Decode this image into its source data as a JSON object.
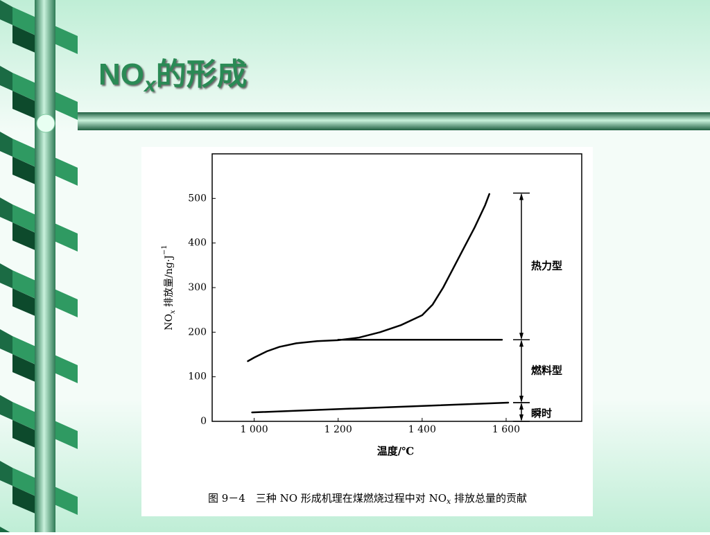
{
  "slide": {
    "title": [
      "NO",
      "x",
      "的形成"
    ]
  },
  "chart_data": {
    "type": "line",
    "ylabel": [
      "NO",
      "x",
      " 排放量/ng·J",
      "−1"
    ],
    "xlabel": "温度/℃",
    "caption": [
      "图 9－4　三种 NO 形成机理在煤燃烧过程中对 NO",
      "x",
      " 排放总量的贡献"
    ],
    "xlim": [
      900,
      1780
    ],
    "ylim": [
      0,
      600
    ],
    "xticks": [
      {
        "value": 1000,
        "label": "1 000"
      },
      {
        "value": 1200,
        "label": "1 200"
      },
      {
        "value": 1400,
        "label": "1 400"
      },
      {
        "value": 1600,
        "label": "1 600"
      }
    ],
    "yticks": [
      0,
      100,
      200,
      300,
      400,
      500
    ],
    "series": [
      {
        "color": "#000000",
        "x": [
          985,
          1000,
          1030,
          1060,
          1100,
          1150,
          1200,
          1250,
          1300,
          1350,
          1400,
          1425,
          1450,
          1475,
          1500,
          1525,
          1550,
          1560
        ],
        "values": [
          135,
          143,
          157,
          167,
          175,
          180,
          182,
          188,
          200,
          216,
          238,
          262,
          300,
          345,
          390,
          435,
          485,
          510
        ]
      },
      {
        "color": "#000000",
        "x": [
          1200,
          1590
        ],
        "values": [
          183,
          183
        ]
      },
      {
        "color": "#000000",
        "x": [
          995,
          1605
        ],
        "values": [
          20,
          42
        ]
      }
    ],
    "annotations": [
      {
        "text": "热力型",
        "range": [
          183,
          512
        ]
      },
      {
        "text": "燃料型",
        "range": [
          42,
          183
        ]
      },
      {
        "text": "瞬时",
        "range": [
          0,
          42
        ]
      }
    ]
  }
}
